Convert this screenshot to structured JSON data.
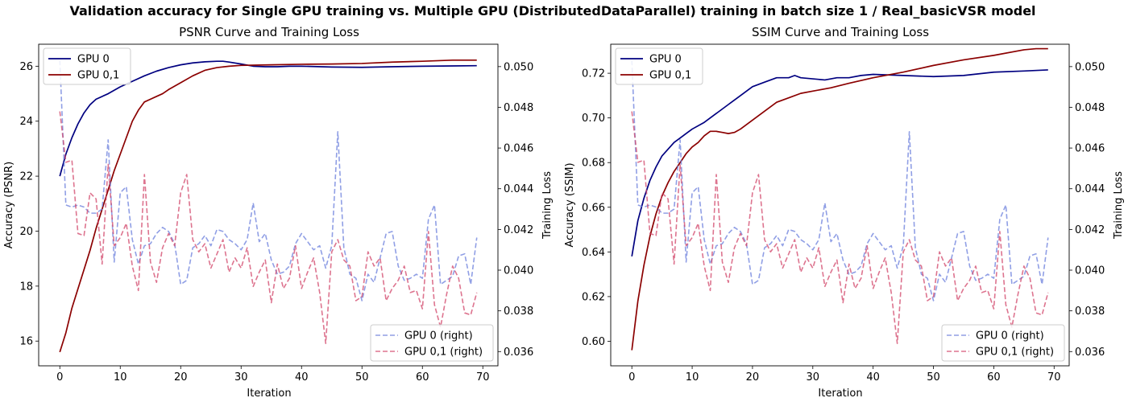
{
  "figure": {
    "suptitle": "Validation accuracy for Single GPU training vs. Multiple GPU (DistributedDataParallel) training in batch size 1 / Real_basicVSR model"
  },
  "colors": {
    "acc_gpu0": "#000080",
    "acc_gpu01": "#8b0000",
    "loss_gpu0": "#6b7fdc",
    "loss_gpu01": "#d2466a"
  },
  "chart_data": [
    {
      "type": "line",
      "title": "PSNR Curve and Training Loss",
      "xlabel": "Iteration",
      "ylabel": "Accuracy (PSNR)",
      "y2label": "Training Loss",
      "xlim": [
        -3.5,
        72.5
      ],
      "ylim": [
        15.1,
        26.8
      ],
      "y2lim": [
        0.0353,
        0.0511
      ],
      "xticks": [
        "0",
        "10",
        "20",
        "30",
        "40",
        "50",
        "60",
        "70"
      ],
      "yticks": [
        "16",
        "18",
        "20",
        "22",
        "24",
        "26"
      ],
      "y2ticks": [
        "0.036",
        "0.038",
        "0.040",
        "0.042",
        "0.044",
        "0.046",
        "0.048",
        "0.050"
      ],
      "legend_left": {
        "position": "upper left",
        "entries": [
          "GPU 0",
          "GPU 0,1"
        ]
      },
      "legend_right": {
        "position": "lower right",
        "entries": [
          "GPU 0 (right)",
          "GPU 0,1 (right)"
        ]
      },
      "series": [
        {
          "name": "GPU 0",
          "axis": "left",
          "style": "solid",
          "x": [
            0,
            1,
            2,
            3,
            4,
            5,
            6,
            8,
            10,
            12,
            14,
            16,
            18,
            20,
            22,
            24,
            26,
            27,
            28,
            30,
            32,
            34,
            36,
            38,
            40,
            45,
            50,
            55,
            60,
            65,
            69
          ],
          "values": [
            22.0,
            22.8,
            23.4,
            23.9,
            24.3,
            24.6,
            24.8,
            25.0,
            25.25,
            25.45,
            25.65,
            25.82,
            25.95,
            26.05,
            26.12,
            26.16,
            26.18,
            26.18,
            26.15,
            26.08,
            26.0,
            25.98,
            25.98,
            26.0,
            26.0,
            25.97,
            25.96,
            25.98,
            26.0,
            26.01,
            26.02
          ]
        },
        {
          "name": "GPU 0,1",
          "axis": "left",
          "style": "solid",
          "x": [
            0,
            1,
            2,
            3,
            4,
            5,
            6,
            7,
            8,
            9,
            10,
            11,
            12,
            13,
            14,
            15,
            16,
            17,
            18,
            20,
            22,
            24,
            26,
            28,
            30,
            35,
            40,
            45,
            50,
            55,
            60,
            65,
            69
          ],
          "values": [
            15.6,
            16.3,
            17.2,
            17.9,
            18.6,
            19.3,
            20.1,
            20.8,
            21.5,
            22.2,
            22.8,
            23.4,
            24.0,
            24.4,
            24.7,
            24.8,
            24.9,
            25.0,
            25.15,
            25.4,
            25.65,
            25.85,
            25.95,
            26.0,
            26.03,
            26.05,
            26.07,
            26.08,
            26.1,
            26.15,
            26.18,
            26.22,
            26.22
          ]
        },
        {
          "name": "GPU 0 (right)",
          "axis": "right",
          "style": "dashed",
          "x": [
            0,
            1,
            2,
            3,
            4,
            5,
            6,
            7,
            8,
            9,
            10,
            11,
            12,
            13,
            14,
            15,
            16,
            17,
            18,
            19,
            20,
            21,
            22,
            23,
            24,
            25,
            26,
            27,
            28,
            29,
            30,
            31,
            32,
            33,
            34,
            35,
            36,
            37,
            38,
            39,
            40,
            41,
            42,
            43,
            44,
            45,
            46,
            47,
            48,
            49,
            50,
            51,
            52,
            53,
            54,
            55,
            56,
            57,
            58,
            59,
            60,
            61,
            62,
            63,
            64,
            65,
            66,
            67,
            68,
            69
          ],
          "values": [
            0.0503,
            0.0432,
            0.0431,
            0.0432,
            0.0431,
            0.0428,
            0.0428,
            0.043,
            0.0464,
            0.0404,
            0.0438,
            0.0441,
            0.0415,
            0.0403,
            0.0412,
            0.0413,
            0.0418,
            0.0421,
            0.0419,
            0.0413,
            0.0393,
            0.0395,
            0.0411,
            0.0413,
            0.0417,
            0.0412,
            0.042,
            0.0419,
            0.0415,
            0.0413,
            0.041,
            0.0415,
            0.0433,
            0.0414,
            0.0418,
            0.0405,
            0.0398,
            0.0399,
            0.0402,
            0.0413,
            0.0418,
            0.0414,
            0.041,
            0.0412,
            0.0401,
            0.0412,
            0.0468,
            0.0411,
            0.0398,
            0.0396,
            0.0385,
            0.0398,
            0.0394,
            0.0406,
            0.0418,
            0.0419,
            0.0402,
            0.0395,
            0.0396,
            0.0398,
            0.0396,
            0.0425,
            0.0432,
            0.0393,
            0.0395,
            0.0397,
            0.0407,
            0.0408,
            0.0393,
            0.0416
          ]
        },
        {
          "name": "GPU 0,1 (right)",
          "axis": "right",
          "style": "dashed",
          "x": [
            0,
            1,
            2,
            3,
            4,
            5,
            6,
            7,
            8,
            9,
            10,
            11,
            12,
            13,
            14,
            15,
            16,
            17,
            18,
            19,
            20,
            21,
            22,
            23,
            24,
            25,
            26,
            27,
            28,
            29,
            30,
            31,
            32,
            33,
            34,
            35,
            36,
            37,
            38,
            39,
            40,
            41,
            42,
            43,
            44,
            45,
            46,
            47,
            48,
            49,
            50,
            51,
            52,
            53,
            54,
            55,
            56,
            57,
            58,
            59,
            60,
            61,
            62,
            63,
            64,
            65,
            66,
            67,
            68,
            69
          ],
          "values": [
            0.0478,
            0.0453,
            0.0454,
            0.0418,
            0.0417,
            0.0438,
            0.0435,
            0.0403,
            0.0452,
            0.0412,
            0.0416,
            0.0423,
            0.0402,
            0.039,
            0.0447,
            0.0404,
            0.0394,
            0.0411,
            0.0418,
            0.0412,
            0.0438,
            0.0447,
            0.0415,
            0.0409,
            0.0413,
            0.0401,
            0.0408,
            0.0415,
            0.0399,
            0.0406,
            0.0401,
            0.0411,
            0.0392,
            0.0399,
            0.0405,
            0.0384,
            0.0403,
            0.0391,
            0.0396,
            0.0412,
            0.0391,
            0.0399,
            0.0406,
            0.0389,
            0.0364,
            0.0409,
            0.0415,
            0.0405,
            0.0402,
            0.0385,
            0.0387,
            0.0409,
            0.0402,
            0.0406,
            0.0385,
            0.0391,
            0.0395,
            0.0402,
            0.0389,
            0.039,
            0.0381,
            0.0419,
            0.0383,
            0.0372,
            0.0388,
            0.0402,
            0.0396,
            0.0379,
            0.0378,
            0.0389
          ]
        }
      ]
    },
    {
      "type": "line",
      "title": "SSIM Curve and Training Loss",
      "xlabel": "Iteration",
      "ylabel": "Accuracy (SSIM)",
      "y2label": "Training Loss",
      "xlim": [
        -3.5,
        72.5
      ],
      "ylim": [
        0.589,
        0.733
      ],
      "y2lim": [
        0.0353,
        0.0511
      ],
      "xticks": [
        "0",
        "10",
        "20",
        "30",
        "40",
        "50",
        "60",
        "70"
      ],
      "yticks": [
        "0.60",
        "0.62",
        "0.64",
        "0.66",
        "0.68",
        "0.70",
        "0.72"
      ],
      "y2ticks": [
        "0.036",
        "0.038",
        "0.040",
        "0.042",
        "0.044",
        "0.046",
        "0.048",
        "0.050"
      ],
      "legend_left": {
        "position": "upper left",
        "entries": [
          "GPU 0",
          "GPU 0,1"
        ]
      },
      "legend_right": {
        "position": "lower right",
        "entries": [
          "GPU 0 (right)",
          "GPU 0,1 (right)"
        ]
      },
      "series": [
        {
          "name": "GPU 0",
          "axis": "left",
          "style": "solid",
          "x": [
            0,
            1,
            2,
            3,
            4,
            5,
            6,
            7,
            8,
            9,
            10,
            12,
            14,
            16,
            18,
            20,
            22,
            24,
            26,
            27,
            28,
            30,
            32,
            34,
            36,
            38,
            40,
            45,
            50,
            55,
            60,
            65,
            69
          ],
          "values": [
            0.638,
            0.654,
            0.664,
            0.672,
            0.678,
            0.683,
            0.686,
            0.689,
            0.691,
            0.693,
            0.695,
            0.698,
            0.702,
            0.706,
            0.71,
            0.714,
            0.716,
            0.718,
            0.718,
            0.719,
            0.718,
            0.7175,
            0.717,
            0.718,
            0.718,
            0.719,
            0.7195,
            0.719,
            0.7185,
            0.719,
            0.7205,
            0.721,
            0.7215
          ]
        },
        {
          "name": "GPU 0,1",
          "axis": "left",
          "style": "solid",
          "x": [
            0,
            1,
            2,
            3,
            4,
            5,
            6,
            7,
            8,
            9,
            10,
            11,
            12,
            13,
            14,
            15,
            16,
            17,
            18,
            20,
            22,
            24,
            26,
            28,
            30,
            33,
            36,
            40,
            45,
            50,
            55,
            60,
            65,
            67,
            69
          ],
          "values": [
            0.596,
            0.618,
            0.634,
            0.647,
            0.657,
            0.665,
            0.671,
            0.676,
            0.68,
            0.684,
            0.687,
            0.689,
            0.692,
            0.694,
            0.694,
            0.6935,
            0.693,
            0.6935,
            0.695,
            0.699,
            0.703,
            0.707,
            0.709,
            0.711,
            0.712,
            0.7135,
            0.7155,
            0.718,
            0.7205,
            0.7235,
            0.726,
            0.728,
            0.7305,
            0.731,
            0.731
          ]
        },
        {
          "name": "GPU 0 (right)",
          "axis": "right",
          "style": "dashed",
          "x": [
            0,
            1,
            2,
            3,
            4,
            5,
            6,
            7,
            8,
            9,
            10,
            11,
            12,
            13,
            14,
            15,
            16,
            17,
            18,
            19,
            20,
            21,
            22,
            23,
            24,
            25,
            26,
            27,
            28,
            29,
            30,
            31,
            32,
            33,
            34,
            35,
            36,
            37,
            38,
            39,
            40,
            41,
            42,
            43,
            44,
            45,
            46,
            47,
            48,
            49,
            50,
            51,
            52,
            53,
            54,
            55,
            56,
            57,
            58,
            59,
            60,
            61,
            62,
            63,
            64,
            65,
            66,
            67,
            68,
            69
          ],
          "values": [
            0.0503,
            0.0432,
            0.0431,
            0.0432,
            0.0431,
            0.0428,
            0.0428,
            0.043,
            0.0464,
            0.0404,
            0.0438,
            0.0441,
            0.0415,
            0.0403,
            0.0412,
            0.0413,
            0.0418,
            0.0421,
            0.0419,
            0.0413,
            0.0393,
            0.0395,
            0.0411,
            0.0413,
            0.0417,
            0.0412,
            0.042,
            0.0419,
            0.0415,
            0.0413,
            0.041,
            0.0415,
            0.0433,
            0.0414,
            0.0418,
            0.0405,
            0.0398,
            0.0399,
            0.0402,
            0.0413,
            0.0418,
            0.0414,
            0.041,
            0.0412,
            0.0401,
            0.0412,
            0.0468,
            0.0411,
            0.0398,
            0.0396,
            0.0385,
            0.0398,
            0.0394,
            0.0406,
            0.0418,
            0.0419,
            0.0402,
            0.0395,
            0.0396,
            0.0398,
            0.0396,
            0.0425,
            0.0432,
            0.0393,
            0.0395,
            0.0397,
            0.0407,
            0.0408,
            0.0393,
            0.0416
          ]
        },
        {
          "name": "GPU 0,1 (right)",
          "axis": "right",
          "style": "dashed",
          "x": [
            0,
            1,
            2,
            3,
            4,
            5,
            6,
            7,
            8,
            9,
            10,
            11,
            12,
            13,
            14,
            15,
            16,
            17,
            18,
            19,
            20,
            21,
            22,
            23,
            24,
            25,
            26,
            27,
            28,
            29,
            30,
            31,
            32,
            33,
            34,
            35,
            36,
            37,
            38,
            39,
            40,
            41,
            42,
            43,
            44,
            45,
            46,
            47,
            48,
            49,
            50,
            51,
            52,
            53,
            54,
            55,
            56,
            57,
            58,
            59,
            60,
            61,
            62,
            63,
            64,
            65,
            66,
            67,
            68,
            69
          ],
          "values": [
            0.0478,
            0.0453,
            0.0454,
            0.0418,
            0.0417,
            0.0438,
            0.0435,
            0.0403,
            0.0452,
            0.0412,
            0.0416,
            0.0423,
            0.0402,
            0.039,
            0.0447,
            0.0404,
            0.0394,
            0.0411,
            0.0418,
            0.0412,
            0.0438,
            0.0447,
            0.0415,
            0.0409,
            0.0413,
            0.0401,
            0.0408,
            0.0415,
            0.0399,
            0.0406,
            0.0401,
            0.0411,
            0.0392,
            0.0399,
            0.0405,
            0.0384,
            0.0403,
            0.0391,
            0.0396,
            0.0412,
            0.0391,
            0.0399,
            0.0406,
            0.0389,
            0.0364,
            0.0409,
            0.0415,
            0.0405,
            0.0402,
            0.0385,
            0.0387,
            0.0409,
            0.0402,
            0.0406,
            0.0385,
            0.0391,
            0.0395,
            0.0402,
            0.0389,
            0.039,
            0.0381,
            0.0419,
            0.0383,
            0.0372,
            0.0388,
            0.0402,
            0.0396,
            0.0379,
            0.0378,
            0.0389
          ]
        }
      ]
    }
  ]
}
